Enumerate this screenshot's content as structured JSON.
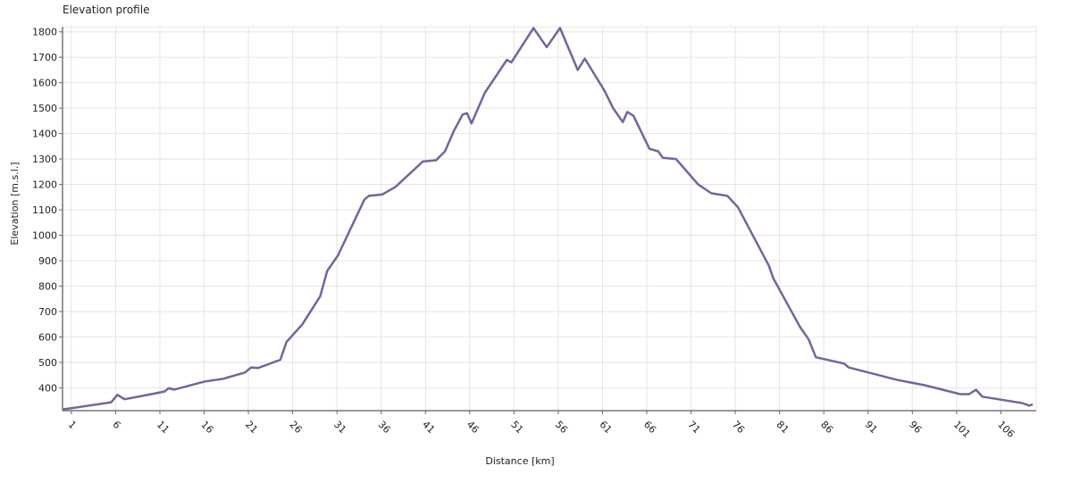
{
  "chart_data": {
    "type": "line",
    "title": "Elevation profile",
    "x_label": "Distance [km]",
    "y_label": "Elevation [m.s.l.]",
    "color": "#6a6a9c",
    "grid": true,
    "xlim": [
      0,
      110
    ],
    "ylim": [
      310,
      1820
    ],
    "xticks": [
      1,
      6,
      11,
      16,
      21,
      26,
      31,
      36,
      41,
      46,
      51,
      56,
      61,
      66,
      71,
      76,
      81,
      86,
      91,
      96,
      101,
      106
    ],
    "yticks": [
      400,
      500,
      600,
      700,
      800,
      900,
      1000,
      1100,
      1200,
      1300,
      1400,
      1500,
      1600,
      1700,
      1800
    ],
    "x": [
      0,
      1,
      3,
      5.5,
      6.2,
      7,
      9,
      11.5,
      12,
      12.6,
      16.1,
      18.1,
      20.6,
      21.3,
      22.1,
      24.6,
      25.3,
      27.1,
      29.1,
      29.9,
      31.1,
      34.1,
      34.6,
      36.1,
      37.6,
      40.7,
      42.2,
      43.2,
      44.2,
      45.2,
      45.7,
      46.2,
      47.7,
      50.2,
      50.7,
      53.2,
      54.7,
      56.2,
      58.2,
      59.0,
      61.2,
      62.2,
      63.3,
      63.8,
      64.5,
      66.3,
      67.3,
      67.8,
      69.3,
      71.8,
      73.3,
      75.1,
      76.3,
      79.8,
      80.3,
      83.3,
      84.3,
      85.1,
      88.3,
      88.8,
      94.4,
      97.4,
      101.4,
      102.4,
      103.2,
      103.9,
      108.4,
      109.2,
      109.6
    ],
    "values": [
      315,
      320,
      330,
      343,
      372,
      355,
      368,
      385,
      398,
      393,
      425,
      435,
      460,
      480,
      478,
      510,
      580,
      650,
      760,
      860,
      920,
      1140,
      1155,
      1160,
      1190,
      1290,
      1295,
      1330,
      1410,
      1475,
      1480,
      1440,
      1560,
      1690,
      1680,
      1815,
      1740,
      1815,
      1650,
      1695,
      1570,
      1500,
      1445,
      1485,
      1470,
      1340,
      1330,
      1305,
      1300,
      1200,
      1165,
      1155,
      1110,
      880,
      830,
      640,
      590,
      520,
      495,
      480,
      430,
      410,
      375,
      375,
      392,
      365,
      340,
      330,
      335
    ]
  }
}
